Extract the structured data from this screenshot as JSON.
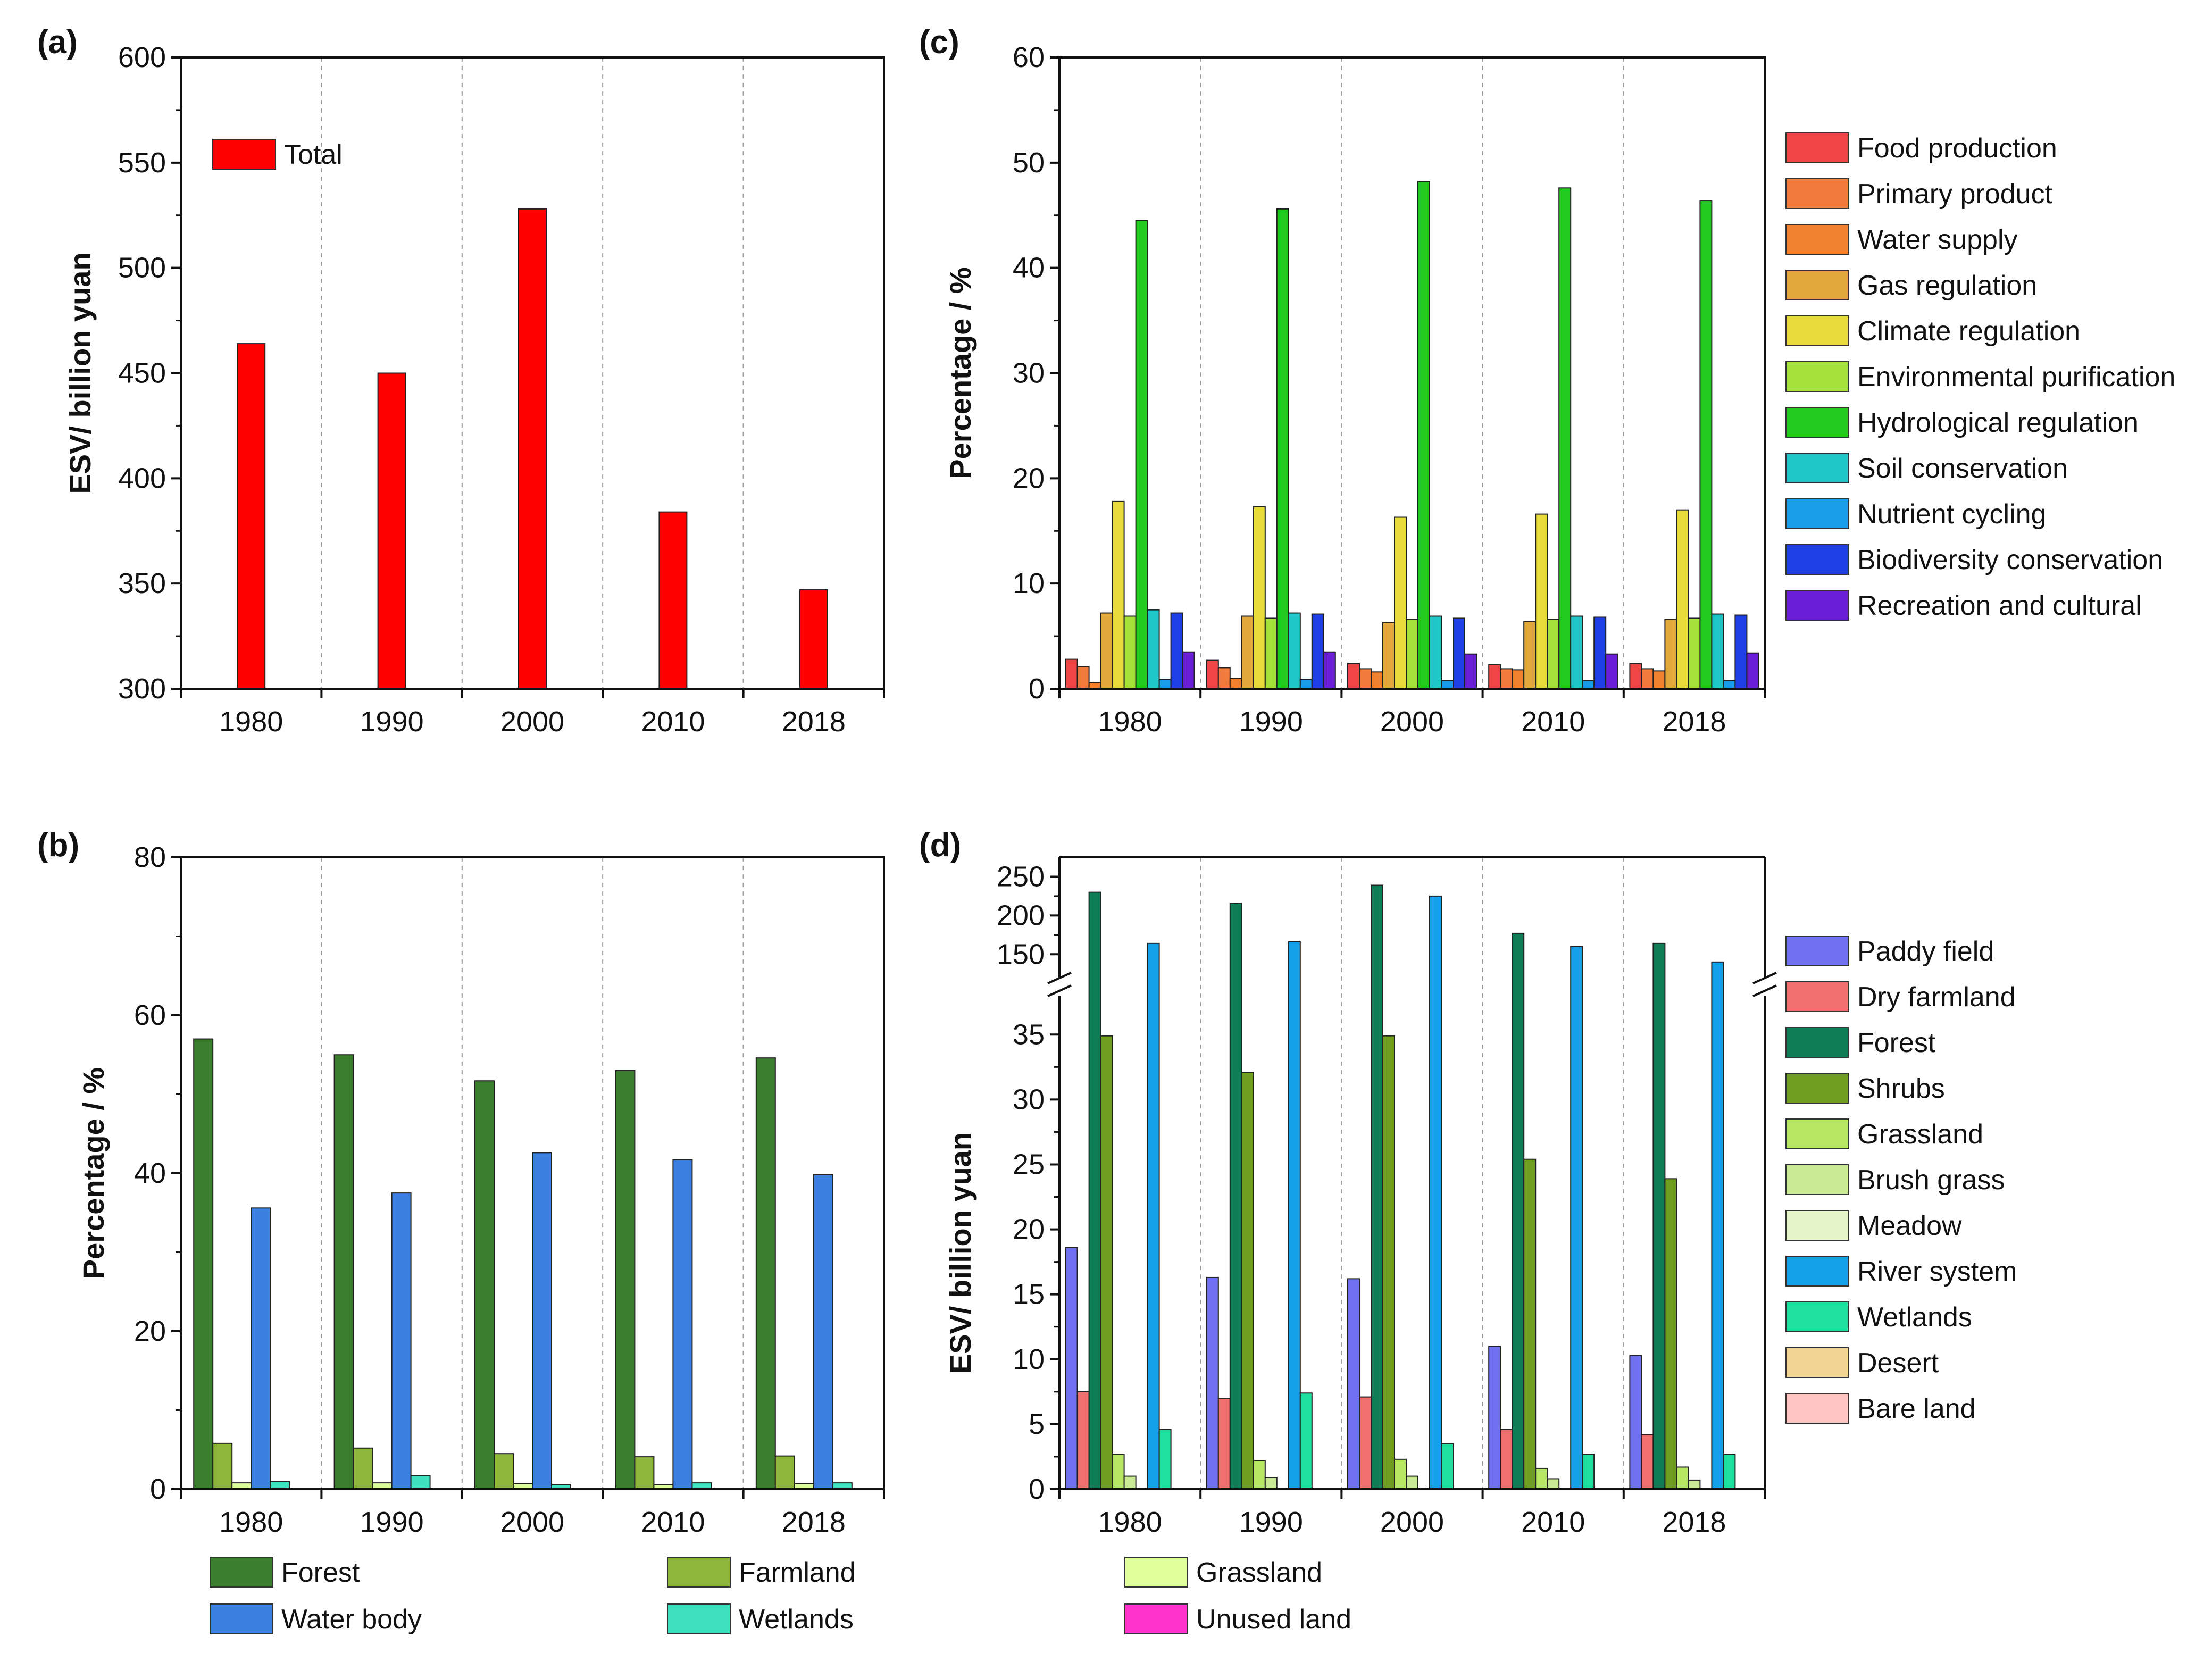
{
  "chart_data": [
    {
      "panel": "(a)",
      "type": "bar",
      "categories": [
        "1980",
        "1990",
        "2000",
        "2010",
        "2018"
      ],
      "series": [
        {
          "name": "Total",
          "color": "#ff0000",
          "values": [
            464,
            450,
            528,
            384,
            347
          ]
        }
      ],
      "ylabel": "ESV/ billion yuan",
      "ylim": [
        300,
        600
      ],
      "yticks": [
        300,
        350,
        400,
        450,
        500,
        550,
        600
      ],
      "legend_position": "top-left",
      "grid": "dashed vertical category separators"
    },
    {
      "panel": "(b)",
      "type": "bar",
      "categories": [
        "1980",
        "1990",
        "2000",
        "2010",
        "2018"
      ],
      "series": [
        {
          "name": "Forest",
          "color": "#3a7d2c",
          "values": [
            57.0,
            55.0,
            51.7,
            53.0,
            54.6
          ]
        },
        {
          "name": "Farmland",
          "color": "#8db63a",
          "values": [
            5.8,
            5.2,
            4.5,
            4.1,
            4.2
          ]
        },
        {
          "name": "Grassland",
          "color": "#deff9a",
          "values": [
            0.8,
            0.8,
            0.7,
            0.6,
            0.7
          ]
        },
        {
          "name": "Water body",
          "color": "#3b7fe0",
          "values": [
            35.6,
            37.5,
            42.6,
            41.7,
            39.8
          ]
        },
        {
          "name": "Wetlands",
          "color": "#3ee0bd",
          "values": [
            1.0,
            1.7,
            0.6,
            0.8,
            0.8
          ]
        },
        {
          "name": "Unused land",
          "color": "#ff33cc",
          "values": [
            0,
            0,
            0,
            0,
            0
          ]
        }
      ],
      "ylabel": "Percentage / %",
      "ylim": [
        0,
        80
      ],
      "yticks": [
        0,
        20,
        40,
        60,
        80
      ],
      "legend_position": "bottom",
      "grid": "dashed vertical category separators"
    },
    {
      "panel": "(c)",
      "type": "bar",
      "categories": [
        "1980",
        "1990",
        "2000",
        "2010",
        "2018"
      ],
      "series": [
        {
          "name": "Food production",
          "color": "#f04545",
          "values": [
            2.8,
            2.7,
            2.4,
            2.3,
            2.4
          ]
        },
        {
          "name": "Primary product",
          "color": "#ef7a3c",
          "values": [
            2.1,
            2.0,
            1.9,
            1.9,
            1.9
          ]
        },
        {
          "name": "Water supply",
          "color": "#f0812e",
          "values": [
            0.6,
            1.0,
            1.6,
            1.8,
            1.7
          ]
        },
        {
          "name": "Gas regulation",
          "color": "#e2a83a",
          "values": [
            7.2,
            6.9,
            6.3,
            6.4,
            6.6
          ]
        },
        {
          "name": "Climate regulation",
          "color": "#e8dc3c",
          "values": [
            17.8,
            17.3,
            16.3,
            16.6,
            17.0
          ]
        },
        {
          "name": "Environmental purification",
          "color": "#a4e23a",
          "values": [
            6.9,
            6.7,
            6.6,
            6.6,
            6.7
          ]
        },
        {
          "name": "Hydrological regulation",
          "color": "#22c91f",
          "values": [
            44.5,
            45.6,
            48.2,
            47.6,
            46.4
          ]
        },
        {
          "name": "Soil conservation",
          "color": "#20c7c9",
          "values": [
            7.5,
            7.2,
            6.9,
            6.9,
            7.1
          ]
        },
        {
          "name": "Nutrient cycling",
          "color": "#1a9de8",
          "values": [
            0.9,
            0.9,
            0.8,
            0.8,
            0.8
          ]
        },
        {
          "name": "Biodiversity conservation",
          "color": "#1f3fe6",
          "values": [
            7.2,
            7.1,
            6.7,
            6.8,
            7.0
          ]
        },
        {
          "name": "Recreation and cultural",
          "color": "#6a1fd6",
          "values": [
            3.5,
            3.5,
            3.3,
            3.3,
            3.4
          ]
        }
      ],
      "ylabel": "Percentage / %",
      "ylim": [
        0,
        60
      ],
      "yticks": [
        0,
        10,
        20,
        30,
        40,
        50,
        60
      ],
      "legend_position": "right",
      "grid": "dashed vertical category separators"
    },
    {
      "panel": "(d)",
      "type": "bar",
      "categories": [
        "1980",
        "1990",
        "2000",
        "2010",
        "2018"
      ],
      "series": [
        {
          "name": "Paddy field",
          "color": "#6e70f0",
          "values": [
            18.6,
            16.3,
            16.2,
            11.0,
            10.3
          ]
        },
        {
          "name": "Dry farmland",
          "color": "#f06f6f",
          "values": [
            7.5,
            7.0,
            7.1,
            4.6,
            4.2
          ]
        },
        {
          "name": "Forest",
          "color": "#0c7d55",
          "values": [
            230,
            216,
            239,
            177,
            164
          ]
        },
        {
          "name": "Shrubs",
          "color": "#6f9e1e",
          "values": [
            34.9,
            32.1,
            34.9,
            25.4,
            23.9
          ]
        },
        {
          "name": "Grassland",
          "color": "#b7e864",
          "values": [
            2.7,
            2.2,
            2.3,
            1.6,
            1.7
          ]
        },
        {
          "name": "Brush grass",
          "color": "#cbea96",
          "values": [
            1.0,
            0.9,
            1.0,
            0.8,
            0.7
          ]
        },
        {
          "name": "Meadow",
          "color": "#e4f5c8",
          "values": [
            0,
            0,
            0,
            0,
            0
          ]
        },
        {
          "name": "River system",
          "color": "#15a0ea",
          "values": [
            164,
            166,
            225,
            160,
            140
          ]
        },
        {
          "name": "Wetlands",
          "color": "#1ee09f",
          "values": [
            4.6,
            7.4,
            3.5,
            2.7,
            2.7
          ]
        },
        {
          "name": "Desert",
          "color": "#f2d493",
          "values": [
            0,
            0,
            0,
            0,
            0
          ]
        },
        {
          "name": "Bare land",
          "color": "#ffc5c5",
          "values": [
            0,
            0,
            0,
            0,
            0
          ]
        }
      ],
      "ylabel": "ESV/ billion yuan",
      "ylim": [
        0,
        275
      ],
      "axis_break": {
        "lower_range": [
          0,
          38
        ],
        "upper_range": [
          120,
          275
        ]
      },
      "yticks_lower": [
        0,
        5,
        10,
        15,
        20,
        25,
        30,
        35
      ],
      "yticks_upper": [
        150,
        200,
        250
      ],
      "legend_position": "right",
      "grid": "dashed vertical category separators"
    }
  ]
}
